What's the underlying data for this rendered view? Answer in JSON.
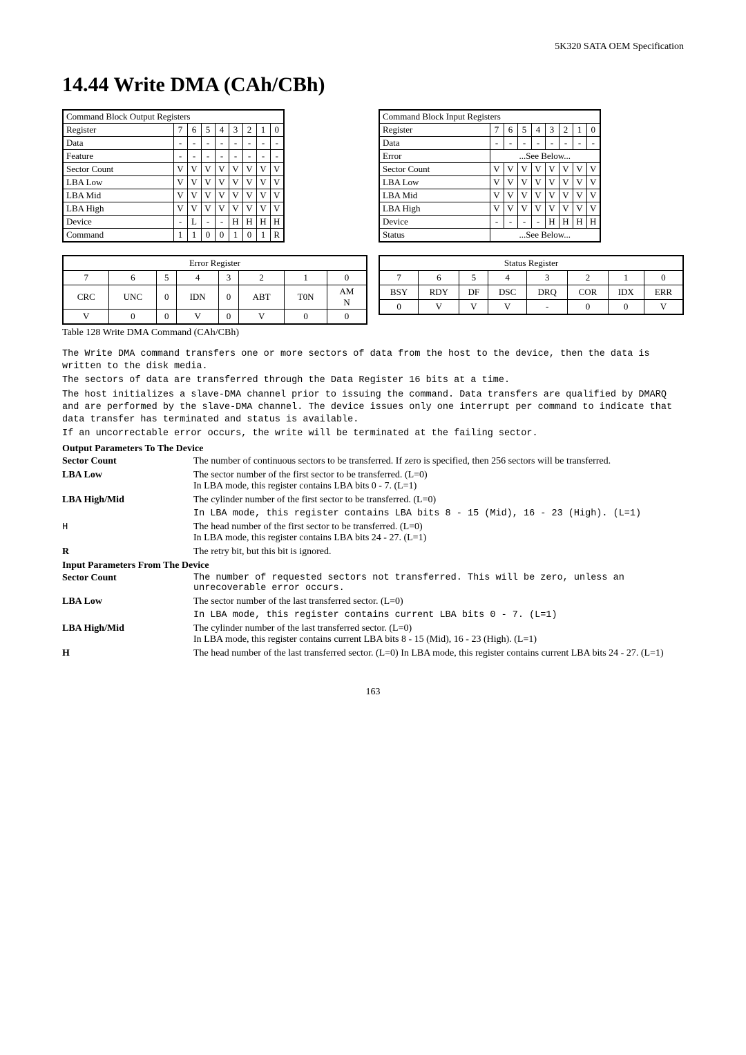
{
  "header": {
    "spec": "5K320 SATA OEM Specification"
  },
  "title": "14.44   Write DMA (CAh/CBh)",
  "output_registers": {
    "title": "Command Block Output Registers",
    "header_bits": [
      "7",
      "6",
      "5",
      "4",
      "3",
      "2",
      "1",
      "0"
    ],
    "rows": [
      {
        "name": "Register",
        "bits": [
          "7",
          "6",
          "5",
          "4",
          "3",
          "2",
          "1",
          "0"
        ]
      },
      {
        "name": "Data",
        "bits": [
          "-",
          "-",
          "-",
          "-",
          "-",
          "-",
          "-",
          "-"
        ]
      },
      {
        "name": "Feature",
        "bits": [
          "-",
          "-",
          "-",
          "-",
          "-",
          "-",
          "-",
          "-"
        ]
      },
      {
        "name": "Sector Count",
        "bits": [
          "V",
          "V",
          "V",
          "V",
          "V",
          "V",
          "V",
          "V"
        ]
      },
      {
        "name": "LBA Low",
        "bits": [
          "V",
          "V",
          "V",
          "V",
          "V",
          "V",
          "V",
          "V"
        ]
      },
      {
        "name": "LBA Mid",
        "bits": [
          "V",
          "V",
          "V",
          "V",
          "V",
          "V",
          "V",
          "V"
        ]
      },
      {
        "name": "LBA High",
        "bits": [
          "V",
          "V",
          "V",
          "V",
          "V",
          "V",
          "V",
          "V"
        ]
      },
      {
        "name": "Device",
        "bits": [
          "-",
          "L",
          "-",
          "-",
          "H",
          "H",
          "H",
          "H"
        ]
      },
      {
        "name": "Command",
        "bits": [
          "1",
          "1",
          "0",
          "0",
          "1",
          "0",
          "1",
          "R"
        ]
      }
    ]
  },
  "input_registers": {
    "title": "Command Block Input Registers",
    "rows": [
      {
        "name": "Register",
        "bits": [
          "7",
          "6",
          "5",
          "4",
          "3",
          "2",
          "1",
          "0"
        ]
      },
      {
        "name": "Data",
        "bits": [
          "-",
          "-",
          "-",
          "-",
          "-",
          "-",
          "-",
          "-"
        ]
      },
      {
        "name": "Error",
        "span": "...See Below..."
      },
      {
        "name": "Sector Count",
        "bits": [
          "V",
          "V",
          "V",
          "V",
          "V",
          "V",
          "V",
          "V"
        ]
      },
      {
        "name": "LBA Low",
        "bits": [
          "V",
          "V",
          "V",
          "V",
          "V",
          "V",
          "V",
          "V"
        ]
      },
      {
        "name": "LBA Mid",
        "bits": [
          "V",
          "V",
          "V",
          "V",
          "V",
          "V",
          "V",
          "V"
        ]
      },
      {
        "name": "LBA High",
        "bits": [
          "V",
          "V",
          "V",
          "V",
          "V",
          "V",
          "V",
          "V"
        ]
      },
      {
        "name": "Device",
        "bits": [
          "-",
          "-",
          "-",
          "-",
          "H",
          "H",
          "H",
          "H"
        ]
      },
      {
        "name": "Status",
        "span": "...See Below..."
      }
    ]
  },
  "error_register": {
    "title": "Error Register",
    "bits": [
      "7",
      "6",
      "5",
      "4",
      "3",
      "2",
      "1",
      "0"
    ],
    "labels": [
      "CRC",
      "UNC",
      "0",
      "IDN",
      "0",
      "ABT",
      "T0N",
      "AM\nN"
    ],
    "values": [
      "V",
      "0",
      "0",
      "V",
      "0",
      "V",
      "0",
      "0"
    ]
  },
  "status_register": {
    "title": "Status Register",
    "bits": [
      "7",
      "6",
      "5",
      "4",
      "3",
      "2",
      "1",
      "0"
    ],
    "labels": [
      "BSY",
      "RDY",
      "DF",
      "DSC",
      "DRQ",
      "COR",
      "IDX",
      "ERR"
    ],
    "values": [
      "0",
      "V",
      "V",
      "V",
      "-",
      "0",
      "0",
      "V"
    ]
  },
  "table_caption": "Table 128 Write DMA Command (CAh/CBh)",
  "paragraphs": [
    "The Write DMA command transfers one or more sectors of data from the host to the device, then the data is written to the disk media.",
    "The sectors of data are transferred through the Data Register 16 bits at a time.",
    "The host initializes a slave-DMA channel prior to issuing the command. Data transfers are qualified by DMARQ and are performed by the slave-DMA channel. The device issues only one interrupt per command to indicate that data transfer has terminated and status is available.",
    "If an uncorrectable error occurs, the write will be terminated at the failing sector."
  ],
  "out_params_title": "Output Parameters To The Device",
  "out_params": [
    {
      "label": "Sector Count",
      "text": "The number of continuous sectors to be transferred. If zero is specified, then 256 sectors will be transferred."
    },
    {
      "label": "LBA Low",
      "text": "The sector number of the first sector to be transferred. (L=0)\nIn LBA mode, this register contains LBA bits 0 - 7. (L=1)"
    },
    {
      "label": "LBA High/Mid",
      "text": "The cylinder number of the first sector to be transferred. (L=0)"
    },
    {
      "label": "",
      "text": "In LBA mode, this register contains LBA bits 8 - 15 (Mid), 16 - 23 (High). (L=1)",
      "mono": true
    },
    {
      "label": "H",
      "text": "The head number of the first sector to be transferred. (L=0)\nIn LBA mode, this register contains LBA bits 24 - 27. (L=1)",
      "mono_label": true
    },
    {
      "label": "R",
      "text": "The retry bit, but this bit is ignored."
    }
  ],
  "in_params_title": "Input Parameters From The Device",
  "in_params": [
    {
      "label": "Sector Count",
      "text": "The number of requested sectors not transferred. This will be zero, unless an unrecoverable error occurs.",
      "mono": true
    },
    {
      "label": "LBA Low",
      "text": "The sector number of the last transferred sector. (L=0)"
    },
    {
      "label": "",
      "text": "In LBA mode, this register contains current LBA bits 0 - 7.  (L=1)",
      "mono": true
    },
    {
      "label": "LBA High/Mid",
      "text": "The cylinder number of the last transferred sector. (L=0)\nIn LBA mode, this register contains current LBA bits 8 - 15 (Mid), 16 - 23 (High). (L=1)"
    },
    {
      "label": "H",
      "text": "The head number of the last transferred sector. (L=0) In LBA mode, this register contains current LBA bits 24 - 27. (L=1)"
    }
  ],
  "page_number": "163"
}
